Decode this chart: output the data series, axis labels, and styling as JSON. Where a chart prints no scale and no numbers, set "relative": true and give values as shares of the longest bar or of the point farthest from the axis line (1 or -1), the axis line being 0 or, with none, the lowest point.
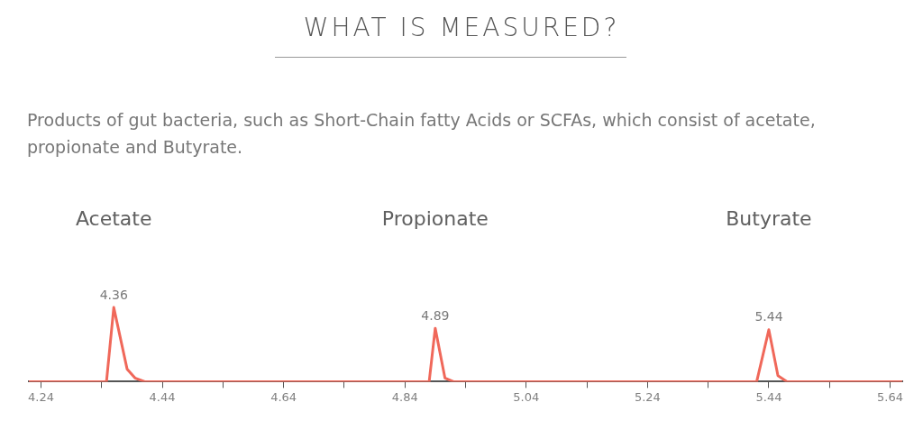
{
  "chart_data": {
    "type": "line",
    "title": "WHAT IS MEASURED?",
    "subtitle": "Products of gut bacteria, such as Short-Chain fatty Acids or SCFAs, which consist of acetate, propionate and Butyrate.",
    "relative": true,
    "series": [
      {
        "color": "#f0685a",
        "x": [
          4.22,
          4.348,
          4.36,
          4.382,
          4.395,
          4.411,
          4.88,
          4.89,
          4.906,
          4.92,
          5.42,
          5.44,
          5.455,
          5.47,
          5.66
        ],
        "values": [
          0,
          0,
          1,
          0.17,
          0.05,
          0,
          0,
          0.72,
          0.05,
          0,
          0,
          0.7,
          0.08,
          0,
          0
        ]
      }
    ],
    "xlim": [
      4.22,
      5.66
    ],
    "xticks": [
      4.24,
      {
        "value": 4.34,
        "label": null
      },
      4.44,
      {
        "value": 4.54,
        "label": null
      },
      4.64,
      {
        "value": 4.74,
        "label": null
      },
      4.84,
      {
        "value": 4.94,
        "label": null
      },
      5.04,
      {
        "value": 5.14,
        "label": null
      },
      5.24,
      {
        "value": 5.34,
        "label": null
      },
      5.44,
      {
        "value": 5.54,
        "label": null
      },
      5.64
    ],
    "annotations": [
      {
        "text": "4.36",
        "x": 4.36,
        "y": 1
      },
      {
        "text": "4.89",
        "x": 4.89,
        "y": 0.72
      },
      {
        "text": "5.44",
        "x": 5.44,
        "y": 0.7
      },
      "Acetate",
      "Propionate",
      "Butyrate"
    ],
    "grid": false,
    "legend": false,
    "marker": "none",
    "line_style": "solid"
  }
}
